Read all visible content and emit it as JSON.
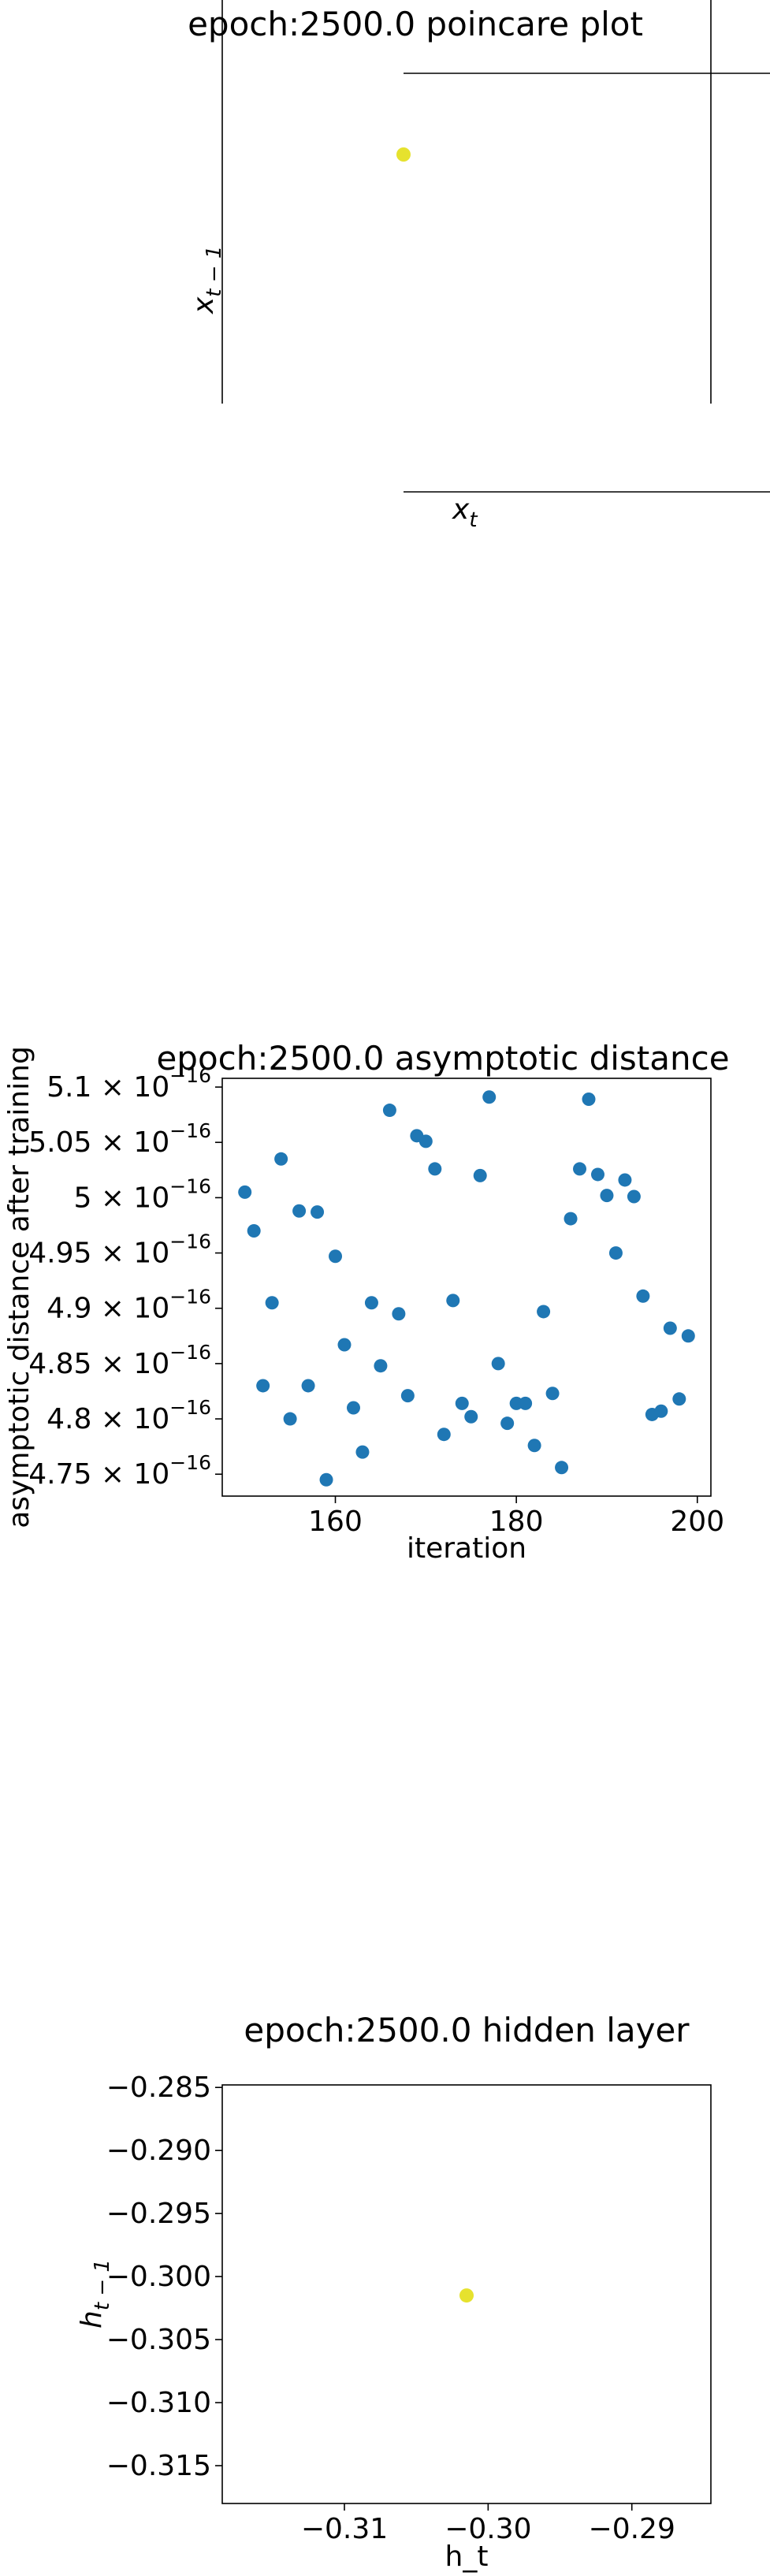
{
  "chart_data": [
    {
      "type": "scatter",
      "title": "epoch:2500.0 poincare plot",
      "xlabel_base": "x",
      "xlabel_sub": "t",
      "ylabel_base": "x",
      "ylabel_sub": "t − 1",
      "points": [
        {
          "x": null,
          "y": null
        }
      ],
      "point_color": "#e6e22e"
    },
    {
      "type": "scatter",
      "title": "epoch:2500.0 asymptotic distance",
      "xlabel": "iteration",
      "ylabel": "asymptotic distance after training",
      "xlim": [
        147.5,
        201.5
      ],
      "ylim": [
        4.7302,
        5.1079
      ],
      "y_scale_exponent": -16,
      "xticks": [
        {
          "value": 160,
          "label": "160"
        },
        {
          "value": 180,
          "label": "180"
        },
        {
          "value": 200,
          "label": "200"
        }
      ],
      "yticks": [
        {
          "value": 4.75,
          "mantissa": "4.75",
          "times": "×",
          "base": "10",
          "exp": "−16"
        },
        {
          "value": 4.8,
          "mantissa": "4.8",
          "times": "×",
          "base": "10",
          "exp": "−16"
        },
        {
          "value": 4.85,
          "mantissa": "4.85",
          "times": "×",
          "base": "10",
          "exp": "−16"
        },
        {
          "value": 4.9,
          "mantissa": "4.9",
          "times": "×",
          "base": "10",
          "exp": "−16"
        },
        {
          "value": 4.95,
          "mantissa": "4.95",
          "times": "×",
          "base": "10",
          "exp": "−16"
        },
        {
          "value": 5.0,
          "mantissa": "5",
          "times": "×",
          "base": "10",
          "exp": "−16"
        },
        {
          "value": 5.05,
          "mantissa": "5.05",
          "times": "×",
          "base": "10",
          "exp": "−16"
        },
        {
          "value": 5.1,
          "mantissa": "5.1",
          "times": "×",
          "base": "10",
          "exp": "−16"
        }
      ],
      "point_color": "#1f77b4",
      "x": [
        150,
        151,
        152,
        153,
        154,
        155,
        156,
        157,
        158,
        159,
        160,
        161,
        162,
        163,
        164,
        165,
        166,
        167,
        168,
        169,
        170,
        171,
        172,
        173,
        174,
        175,
        176,
        177,
        178,
        179,
        180,
        181,
        182,
        183,
        184,
        185,
        186,
        187,
        188,
        189,
        190,
        191,
        192,
        193,
        194,
        195,
        196,
        197,
        198,
        199
      ],
      "y": [
        5.005,
        4.97,
        4.83,
        4.905,
        5.035,
        4.8,
        4.988,
        4.83,
        4.987,
        4.745,
        4.947,
        4.867,
        4.81,
        4.77,
        4.905,
        4.848,
        5.079,
        4.895,
        4.821,
        5.056,
        5.051,
        5.026,
        4.786,
        4.907,
        4.814,
        4.802,
        5.02,
        5.091,
        4.85,
        4.796,
        4.814,
        4.814,
        4.776,
        4.897,
        4.823,
        4.756,
        4.981,
        5.026,
        5.089,
        5.021,
        5.002,
        4.95,
        5.016,
        5.001,
        4.911,
        4.804,
        4.807,
        4.882,
        4.818,
        4.875
      ]
    },
    {
      "type": "scatter",
      "title": "epoch:2500.0 hidden layer",
      "xlabel": "h_t",
      "ylabel_base": "h",
      "ylabel_sub": "t − 1",
      "xlim": [
        -0.3185,
        -0.2845
      ],
      "ylim": [
        -0.318,
        -0.2848
      ],
      "xticks": [
        {
          "value": -0.31,
          "label": "−0.31"
        },
        {
          "value": -0.3,
          "label": "−0.30"
        },
        {
          "value": -0.29,
          "label": "−0.29"
        }
      ],
      "yticks": [
        {
          "value": -0.285,
          "label": "−0.285"
        },
        {
          "value": -0.29,
          "label": "−0.290"
        },
        {
          "value": -0.295,
          "label": "−0.295"
        },
        {
          "value": -0.3,
          "label": "−0.300"
        },
        {
          "value": -0.305,
          "label": "−0.305"
        },
        {
          "value": -0.31,
          "label": "−0.310"
        },
        {
          "value": -0.315,
          "label": "−0.315"
        }
      ],
      "points": [
        {
          "x": -0.3015,
          "y": -0.3015
        }
      ],
      "point_color": "#e6e22e"
    }
  ]
}
